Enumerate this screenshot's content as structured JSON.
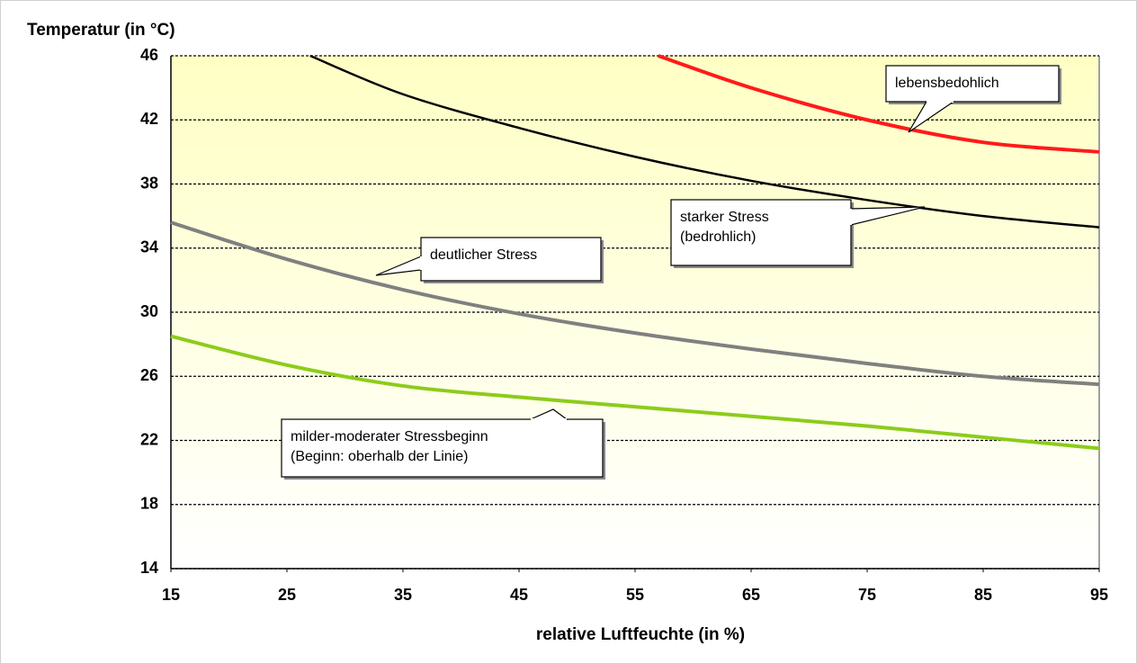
{
  "chart_data": {
    "type": "line",
    "title": "Temperatur (in °C)",
    "x_label": "relative Luftfeuchte (in %)",
    "xlim": [
      15,
      95
    ],
    "xticks": [
      15,
      25,
      35,
      45,
      55,
      65,
      75,
      85,
      95
    ],
    "ylim": [
      14,
      46
    ],
    "yticks": [
      14,
      18,
      22,
      26,
      30,
      34,
      38,
      42,
      46
    ],
    "grid": true,
    "series": [
      {
        "color": "#8ccc1a",
        "x": [
          15,
          25,
          35,
          45,
          55,
          65,
          75,
          85,
          95
        ],
        "values": [
          28.5,
          26.7,
          25.4,
          24.7,
          24.1,
          23.5,
          22.9,
          22.2,
          21.5
        ]
      },
      {
        "color": "#808080",
        "x": [
          15,
          25,
          35,
          45,
          55,
          65,
          75,
          85,
          95
        ],
        "values": [
          35.6,
          33.3,
          31.4,
          29.9,
          28.7,
          27.7,
          26.8,
          26.0,
          25.5
        ]
      },
      {
        "color": "#000000",
        "x": [
          27,
          35,
          45,
          55,
          65,
          75,
          85,
          95
        ],
        "values": [
          46,
          43.6,
          41.5,
          39.7,
          38.2,
          37.0,
          36.0,
          35.3
        ]
      },
      {
        "color": "#ff1a1a",
        "x": [
          57,
          65,
          75,
          85,
          95
        ],
        "values": [
          46,
          44.0,
          42.0,
          40.6,
          40.0
        ]
      }
    ],
    "annotations": [
      {
        "lines": [
          "lebensbedohlich"
        ]
      },
      {
        "lines": [
          "starker Stress",
          "(bedrohlich)"
        ]
      },
      {
        "lines": [
          "deutlicher  Stress"
        ]
      },
      {
        "lines": [
          "milder-moderater Stressbeginn",
          "(Beginn: oberhalb der Linie)"
        ]
      }
    ]
  }
}
